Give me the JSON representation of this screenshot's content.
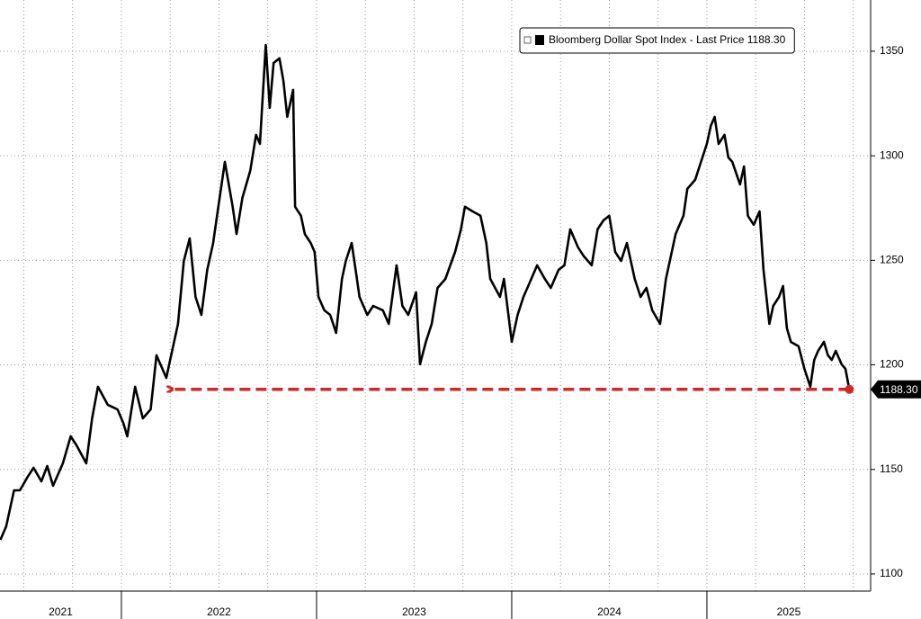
{
  "chart_data": {
    "type": "line",
    "x": [
      2021.38,
      2021.41,
      2021.45,
      2021.48,
      2021.52,
      2021.55,
      2021.59,
      2021.62,
      2021.65,
      2021.7,
      2021.74,
      2021.77,
      2021.82,
      2021.85,
      2021.88,
      2021.93,
      2021.98,
      2022.01,
      2022.03,
      2022.07,
      2022.11,
      2022.15,
      2022.18,
      2022.23,
      2022.25,
      2022.29,
      2022.32,
      2022.35,
      2022.38,
      2022.41,
      2022.44,
      2022.47,
      2022.49,
      2022.53,
      2022.57,
      2022.59,
      2022.62,
      2022.66,
      2022.69,
      2022.71,
      2022.74,
      2022.76,
      2022.78,
      2022.81,
      2022.83,
      2022.85,
      2022.88,
      2022.89,
      2022.92,
      2022.94,
      2022.97,
      2022.99,
      2023.01,
      2023.04,
      2023.07,
      2023.1,
      2023.13,
      2023.15,
      2023.18,
      2023.2,
      2023.22,
      2023.26,
      2023.29,
      2023.34,
      2023.37,
      2023.41,
      2023.44,
      2023.47,
      2023.51,
      2023.53,
      2023.56,
      2023.59,
      2023.62,
      2023.66,
      2023.71,
      2023.74,
      2023.76,
      2023.8,
      2023.84,
      2023.87,
      2023.89,
      2023.94,
      2023.96,
      2024.0,
      2024.03,
      2024.06,
      2024.1,
      2024.13,
      2024.17,
      2024.2,
      2024.24,
      2024.27,
      2024.3,
      2024.34,
      2024.37,
      2024.41,
      2024.44,
      2024.47,
      2024.5,
      2024.53,
      2024.56,
      2024.59,
      2024.63,
      2024.66,
      2024.69,
      2024.72,
      2024.76,
      2024.79,
      2024.82,
      2024.84,
      2024.88,
      2024.9,
      2024.94,
      2024.97,
      2025.0,
      2025.02,
      2025.04,
      2025.06,
      2025.09,
      2025.11,
      2025.13,
      2025.17,
      2025.19,
      2025.21,
      2025.24,
      2025.27,
      2025.29,
      2025.32,
      2025.34,
      2025.37,
      2025.39,
      2025.41,
      2025.43,
      2025.47,
      2025.5,
      2025.53,
      2025.55,
      2025.57,
      2025.6,
      2025.62,
      2025.64,
      2025.66,
      2025.69,
      2025.71,
      2025.73
    ],
    "series": [
      {
        "name": "Bloomberg Dollar Spot Index - Last Price 1188.30",
        "color": "#000000",
        "values": [
          1116.3,
          1122.8,
          1140.0,
          1140.0,
          1146.5,
          1150.8,
          1144.3,
          1151.6,
          1142.2,
          1152.9,
          1165.8,
          1161.5,
          1152.9,
          1174.4,
          1189.5,
          1180.9,
          1178.7,
          1172.2,
          1165.8,
          1189.5,
          1174.4,
          1178.7,
          1204.6,
          1193.8,
          1202.4,
          1219.6,
          1249.7,
          1260.5,
          1232.5,
          1223.9,
          1245.4,
          1258.3,
          1271.3,
          1297.1,
          1275.6,
          1262.6,
          1279.9,
          1292.8,
          1310.0,
          1305.7,
          1353.0,
          1322.9,
          1344.4,
          1346.6,
          1335.8,
          1318.6,
          1331.5,
          1275.6,
          1271.3,
          1262.6,
          1258.3,
          1254.0,
          1232.5,
          1226.1,
          1223.9,
          1215.3,
          1241.1,
          1249.7,
          1258.3,
          1245.4,
          1232.5,
          1223.9,
          1228.2,
          1226.1,
          1219.6,
          1247.6,
          1228.2,
          1223.9,
          1234.7,
          1200.3,
          1211.0,
          1219.6,
          1236.8,
          1241.1,
          1254.0,
          1264.8,
          1275.6,
          1273.4,
          1271.3,
          1258.3,
          1241.1,
          1232.5,
          1241.1,
          1211.0,
          1223.9,
          1232.5,
          1241.1,
          1247.6,
          1241.1,
          1236.8,
          1245.4,
          1247.6,
          1264.8,
          1256.2,
          1251.9,
          1247.6,
          1264.8,
          1269.1,
          1271.3,
          1254.0,
          1249.7,
          1258.3,
          1241.1,
          1232.5,
          1236.8,
          1226.1,
          1219.6,
          1241.1,
          1254.0,
          1262.6,
          1271.3,
          1284.2,
          1288.5,
          1297.1,
          1305.7,
          1314.3,
          1318.6,
          1305.7,
          1310.0,
          1299.2,
          1297.1,
          1286.3,
          1294.9,
          1271.3,
          1267.0,
          1273.4,
          1245.4,
          1219.6,
          1228.2,
          1232.5,
          1237.7,
          1217.5,
          1211.0,
          1208.9,
          1198.1,
          1189.5,
          1202.4,
          1206.7,
          1211.0,
          1204.6,
          1202.4,
          1206.7,
          1200.3,
          1198.1,
          1188.3
        ]
      }
    ],
    "xlim": [
      2021.378,
      2025.839
    ],
    "xticks": [
      2022,
      2023,
      2024,
      2025
    ],
    "xgrid": [
      2021.5,
      2021.75,
      2022,
      2022.25,
      2022.5,
      2022.75,
      2023,
      2023.25,
      2023.5,
      2023.75,
      2024,
      2024.25,
      2024.5,
      2024.75,
      2025,
      2025.25,
      2025.5,
      2025.75
    ],
    "year_labels": [
      "2021",
      "2022",
      "2023",
      "2024",
      "2025"
    ],
    "ylim": [
      1091.8,
      1374.5
    ],
    "yticks": [
      1100,
      1150,
      1200,
      1250,
      1300,
      1350
    ],
    "grid": true,
    "legend": "top-right",
    "annotation": {
      "value": 1188.3,
      "label": "1188.30",
      "x_start": 2022.24,
      "color": "#d62728"
    }
  }
}
